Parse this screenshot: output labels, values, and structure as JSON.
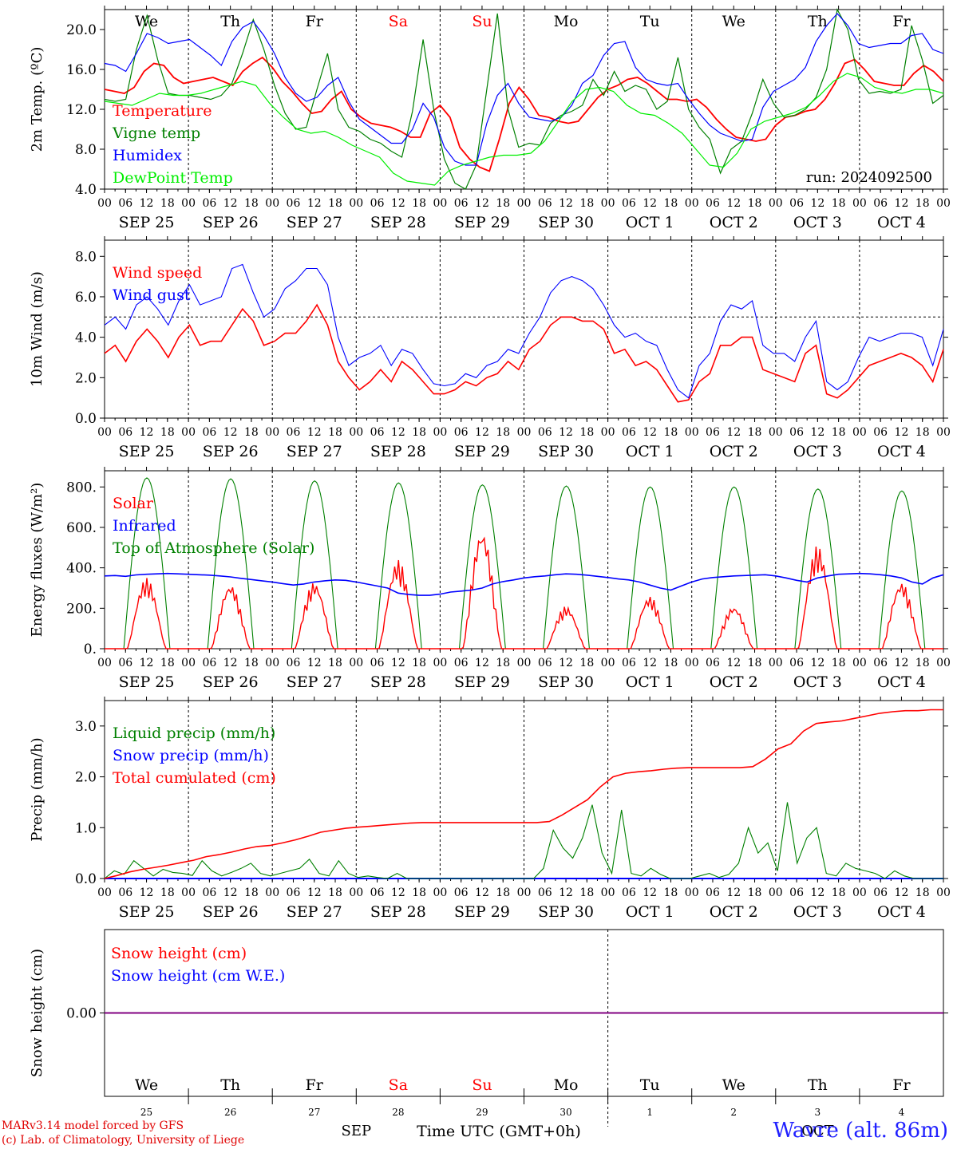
{
  "chart_data": [
    {
      "type": "line",
      "ylabel": "2m Temp. (ºC)",
      "ylim": [
        4,
        22
      ],
      "yticks": [
        "4.0",
        "8.0",
        "12.0",
        "16.0",
        "20.0"
      ],
      "ytick_values": [
        4,
        8,
        12,
        16,
        20
      ],
      "legend_placement": "top-left",
      "annotation": "run: 2024092500",
      "series": [
        {
          "name": "Temperature",
          "color": "#ff0000",
          "values": [
            14,
            13.8,
            13.6,
            14.2,
            15.8,
            16.6,
            16.4,
            15.2,
            14.6,
            14.8,
            15,
            15.2,
            14.8,
            14.4,
            15.8,
            16.6,
            17.2,
            16.2,
            14.8,
            13.8,
            12.6,
            11.6,
            11.8,
            13,
            13.8,
            12,
            11.2,
            10.6,
            10.4,
            10.2,
            9.8,
            9.2,
            9.2,
            11.6,
            12.4,
            11.2,
            8.2,
            7,
            6.2,
            5.8,
            9,
            12.6,
            14.2,
            13,
            11.4,
            11.2,
            10.8,
            10.6,
            10.8,
            12,
            13.2,
            14,
            14.4,
            15,
            15.2,
            14.6,
            13.8,
            13,
            13,
            12.8,
            13,
            12.2,
            11,
            10,
            9.2,
            9,
            8.8,
            9,
            10.4,
            11.2,
            11.4,
            11.8,
            12,
            13,
            14.6,
            16.6,
            17,
            16,
            14.8,
            14.6,
            14.4,
            14.4,
            15.6,
            16.4,
            15.8,
            14.8
          ]
        },
        {
          "name": "Vigne temp",
          "color": "#008000",
          "values": [
            13,
            12.8,
            13,
            18,
            21.4,
            17,
            13.6,
            13.4,
            13.4,
            13.2,
            13,
            13.4,
            14.6,
            17.6,
            21,
            18,
            14.4,
            11.6,
            10,
            10.2,
            14,
            17.6,
            12,
            10.2,
            9.8,
            9,
            8.6,
            7.8,
            7.2,
            11.8,
            19,
            12,
            7,
            4.6,
            4,
            6.4,
            14,
            21.6,
            12,
            8.2,
            8.6,
            8.4,
            10.6,
            11.4,
            11.8,
            12.4,
            15,
            13.4,
            15.8,
            13.8,
            14.4,
            14,
            12,
            12.8,
            17.2,
            12,
            10.2,
            9,
            5.6,
            8,
            8.8,
            11.6,
            15,
            12.6,
            11.2,
            11.4,
            12,
            13.2,
            16,
            22,
            20,
            15,
            13.6,
            13.8,
            13.6,
            14,
            20.4,
            17,
            12.6,
            13.4
          ]
        },
        {
          "name": "Humidex",
          "color": "#0000ff",
          "values": [
            16.6,
            16.4,
            15.8,
            17.6,
            19.6,
            19.2,
            18.6,
            18.8,
            19,
            18.2,
            17.4,
            16.4,
            18.8,
            20.2,
            20.8,
            19.4,
            17.6,
            15.2,
            13.6,
            12.8,
            13.2,
            14.4,
            15.2,
            12.8,
            11,
            10.2,
            9.4,
            8.6,
            8.6,
            10,
            12.6,
            11.2,
            8.2,
            6.8,
            6.4,
            6.4,
            10.6,
            13.4,
            14.6,
            12.6,
            11.2,
            11,
            10.8,
            11.2,
            12.4,
            14.6,
            15.4,
            17.4,
            18.6,
            18.8,
            16.2,
            15,
            14.6,
            14.4,
            14.6,
            13,
            11.6,
            10.4,
            9.6,
            9.2,
            8.8,
            9,
            12.2,
            13.8,
            14.4,
            15,
            16.2,
            18.8,
            20.4,
            21.6,
            20.4,
            18.6,
            18.2,
            18.4,
            18.6,
            18.6,
            19.4,
            19.6,
            18,
            17.6
          ]
        },
        {
          "name": "DewPoint Temp",
          "color": "#00ee00",
          "values": [
            12.8,
            12.6,
            12.4,
            13,
            13.6,
            13.4,
            13.4,
            13.6,
            14,
            14.4,
            14.8,
            14.4,
            12.6,
            11.2,
            10,
            9.6,
            9.8,
            9.2,
            8.4,
            7.8,
            7.2,
            5.6,
            4.8,
            4.6,
            4.4,
            5.8,
            6.4,
            6.8,
            7.2,
            7.4,
            7.4,
            7.6,
            8.8,
            10.8,
            12.8,
            14,
            14.2,
            13.8,
            12.4,
            11.6,
            11.4,
            10.6,
            9.6,
            8,
            6.4,
            6.2,
            7.6,
            10,
            10.8,
            11.2,
            11.6,
            12.2,
            13.4,
            14.8,
            15.6,
            15.2,
            14.2,
            13.8,
            13.6,
            14,
            14,
            13.6
          ]
        }
      ]
    },
    {
      "type": "line",
      "ylabel": "10m Wind (m/s)",
      "ylim": [
        0,
        8.8
      ],
      "yticks": [
        "0.0",
        "2.0",
        "4.0",
        "6.0",
        "8.0"
      ],
      "ytick_values": [
        0,
        2,
        4,
        6,
        8
      ],
      "reference_line": 5,
      "legend_placement": "top-left",
      "series": [
        {
          "name": "Wind speed",
          "color": "#ff0000",
          "values": [
            3.2,
            3.6,
            2.8,
            3.8,
            4.4,
            3.8,
            3,
            4,
            4.6,
            3.6,
            3.8,
            3.8,
            4.6,
            5.4,
            4.8,
            3.6,
            3.8,
            4.2,
            4.2,
            4.8,
            5.6,
            4.6,
            2.8,
            2,
            1.4,
            1.8,
            2.4,
            1.8,
            2.8,
            2.4,
            1.8,
            1.2,
            1.2,
            1.4,
            1.8,
            1.6,
            2,
            2.2,
            2.8,
            2.4,
            3.4,
            3.8,
            4.6,
            5,
            5,
            4.8,
            4.8,
            4.4,
            3.2,
            3.4,
            2.6,
            2.8,
            2.4,
            1.6,
            0.8,
            0.9,
            1.8,
            2.2,
            3.6,
            3.6,
            4,
            4,
            2.4,
            2.2,
            2,
            1.8,
            3.2,
            3.6,
            1.2,
            1,
            1.4,
            2,
            2.6,
            2.8,
            3,
            3.2,
            3,
            2.6,
            1.8,
            3.4
          ]
        },
        {
          "name": "Wind gust",
          "color": "#0000ff",
          "values": [
            4.6,
            5,
            4.4,
            5.6,
            6,
            5.4,
            4.6,
            5.8,
            6.6,
            5.6,
            5.8,
            6,
            7.4,
            7.6,
            6.2,
            5,
            5.4,
            6.4,
            6.8,
            7.4,
            7.4,
            6.6,
            4,
            2.6,
            3,
            3.2,
            3.6,
            2.6,
            3.4,
            3.2,
            2.4,
            1.7,
            1.6,
            1.7,
            2.2,
            2,
            2.6,
            2.8,
            3.4,
            3.2,
            4.2,
            5,
            6.2,
            6.8,
            7,
            6.8,
            6.4,
            5.6,
            4.6,
            4,
            4.2,
            3.8,
            3.6,
            2.4,
            1.4,
            1,
            2.6,
            3.2,
            4.8,
            5.6,
            5.4,
            5.8,
            3.6,
            3.2,
            3.2,
            2.8,
            4,
            4.8,
            1.8,
            1.4,
            1.8,
            3,
            4,
            3.8,
            4,
            4.2,
            4.2,
            4,
            2.6,
            4.4
          ]
        }
      ]
    },
    {
      "type": "line",
      "ylabel": "Energy fluxes (W/m²)",
      "ylim": [
        0,
        880
      ],
      "yticks": [
        "0.",
        "200.",
        "400.",
        "600.",
        "800."
      ],
      "ytick_values": [
        0,
        200,
        400,
        600,
        800
      ],
      "legend_placement": "top-left",
      "toa_peaks": [
        845,
        840,
        830,
        820,
        810,
        805,
        800,
        800,
        790,
        780
      ],
      "solar_peaks": [
        350,
        320,
        330,
        440,
        590,
        210,
        260,
        210,
        510,
        330
      ],
      "series": [
        {
          "name": "Solar",
          "color": "#ff0000"
        },
        {
          "name": "Infrared",
          "color": "#0000ff",
          "values": [
            360,
            362,
            358,
            365,
            368,
            370,
            372,
            370,
            368,
            366,
            364,
            360,
            355,
            348,
            342,
            336,
            330,
            322,
            315,
            320,
            330,
            336,
            340,
            338,
            330,
            320,
            310,
            300,
            275,
            268,
            264,
            264,
            270,
            280,
            285,
            290,
            300,
            320,
            332,
            340,
            350,
            356,
            360,
            366,
            370,
            368,
            364,
            358,
            352,
            345,
            340,
            330,
            315,
            300,
            290,
            310,
            330,
            345,
            352,
            356,
            360,
            362,
            364,
            366,
            360,
            350,
            338,
            330,
            350,
            360,
            368,
            370,
            372,
            370,
            366,
            360,
            350,
            330,
            320,
            350,
            366
          ]
        },
        {
          "name": "Top of Atmosphere (Solar)",
          "color": "#008000"
        }
      ]
    },
    {
      "type": "line",
      "ylabel": "Precip (mm/h)",
      "ylim": [
        0,
        3.5
      ],
      "yticks": [
        "0.0",
        "1.0",
        "2.0",
        "3.0"
      ],
      "ytick_values": [
        0,
        1,
        2,
        3
      ],
      "legend_placement": "top-left",
      "series": [
        {
          "name": "Liquid precip (mm/h)",
          "color": "#008000",
          "values": [
            0,
            0.15,
            0.08,
            0.35,
            0.2,
            0.05,
            0.18,
            0.12,
            0.1,
            0.06,
            0.35,
            0.15,
            0.05,
            0.12,
            0.2,
            0.3,
            0.1,
            0.05,
            0.1,
            0.15,
            0.2,
            0.38,
            0.1,
            0.05,
            0.35,
            0.1,
            0.02,
            0.05,
            0.02,
            0,
            0.1,
            0,
            0,
            0,
            0,
            0,
            0,
            0,
            0,
            0,
            0,
            0,
            0,
            0,
            0,
            0.2,
            0.95,
            0.6,
            0.4,
            0.8,
            1.45,
            0.5,
            0.1,
            1.35,
            0.1,
            0.05,
            0.2,
            0.08,
            0,
            0,
            0,
            0.05,
            0.1,
            0.02,
            0.08,
            0.3,
            1,
            0.5,
            0.7,
            0.15,
            1.5,
            0.3,
            0.8,
            1.0,
            0.1,
            0.05,
            0.3,
            0.2,
            0.15,
            0.1,
            0,
            0.15,
            0.05,
            0,
            0,
            0,
            0
          ]
        },
        {
          "name": "Snow precip (mm/h)",
          "color": "#0000ff",
          "values": [
            0
          ]
        },
        {
          "name": "Total cumulated (cm)",
          "color": "#ff0000",
          "values": [
            0,
            0.06,
            0.13,
            0.18,
            0.22,
            0.26,
            0.31,
            0.36,
            0.43,
            0.47,
            0.52,
            0.58,
            0.63,
            0.65,
            0.7,
            0.76,
            0.83,
            0.91,
            0.95,
            0.99,
            1.01,
            1.03,
            1.05,
            1.07,
            1.09,
            1.1,
            1.1,
            1.1,
            1.1,
            1.1,
            1.1,
            1.1,
            1.1,
            1.1,
            1.1,
            1.12,
            1.25,
            1.4,
            1.55,
            1.8,
            2.0,
            2.07,
            2.1,
            2.12,
            2.15,
            2.17,
            2.18,
            2.18,
            2.18,
            2.18,
            2.18,
            2.2,
            2.35,
            2.55,
            2.65,
            2.9,
            3.05,
            3.08,
            3.1,
            3.15,
            3.2,
            3.25,
            3.28,
            3.3,
            3.3,
            3.32,
            3.32
          ]
        }
      ]
    },
    {
      "type": "line",
      "ylabel": "Snow height (cm)",
      "ylim": [
        -1,
        1
      ],
      "yticks": [
        "0.00"
      ],
      "ytick_values": [
        0
      ],
      "legend_placement": "top-left",
      "series": [
        {
          "name": "Snow height (cm)",
          "color": "#ff0000",
          "values": [
            0,
            0
          ]
        },
        {
          "name": "Snow height (cm W.E.)",
          "color": "#0000ff",
          "values": [
            0,
            0
          ]
        }
      ]
    }
  ],
  "x_axis": {
    "hour_labels": [
      "00",
      "06",
      "12",
      "18"
    ],
    "final_hour_label": "00",
    "date_labels": [
      "SEP 25",
      "SEP 26",
      "SEP 27",
      "SEP 28",
      "SEP 29",
      "SEP 30",
      "OCT  1",
      "OCT  2",
      "OCT  3",
      "OCT  4"
    ],
    "day_names": [
      "We",
      "Th",
      "Fr",
      "Sa",
      "Su",
      "Mo",
      "Tu",
      "We",
      "Th",
      "Fr"
    ],
    "weekend_color": "#ff0000",
    "weekday_color": "#000000",
    "weekend_days": [
      "Sa",
      "Su"
    ],
    "day_numbers": [
      "25",
      "26",
      "27",
      "28",
      "29",
      "30",
      "1",
      "2",
      "3",
      "4"
    ],
    "month_labels": [
      "SEP",
      "OCT"
    ],
    "title": "Time UTC (GMT+0h)"
  },
  "footer": {
    "credit_line1": "MARv3.14 model forced by GFS",
    "credit_line2": "(c) Lab. of Climatology, University of Liege",
    "station": "Wavre (alt. 86m)"
  }
}
